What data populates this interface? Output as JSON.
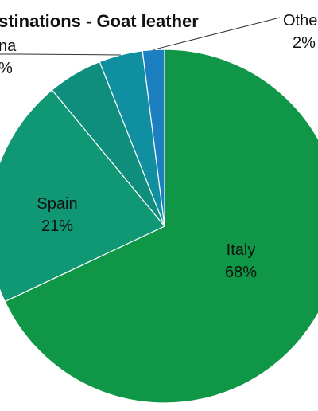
{
  "chart_data": {
    "type": "pie",
    "title": "stinations - Goat leather",
    "slices": [
      {
        "label": "Italy",
        "value": 68,
        "value_label": "68%",
        "color": "#0f9646"
      },
      {
        "label": "Spain",
        "value": 21,
        "value_label": "21%",
        "color": "#0f9873"
      },
      {
        "label": "",
        "value": 5,
        "value_label": "",
        "color": "#108e7d"
      },
      {
        "label": "na",
        "value": 4,
        "value_label": "%",
        "color": "#0f8f9f"
      },
      {
        "label": "Othe",
        "value": 2,
        "value_label": "2%",
        "color": "#1b7fc0"
      }
    ],
    "slice_border_color": "#ffffff",
    "legend": "none"
  }
}
